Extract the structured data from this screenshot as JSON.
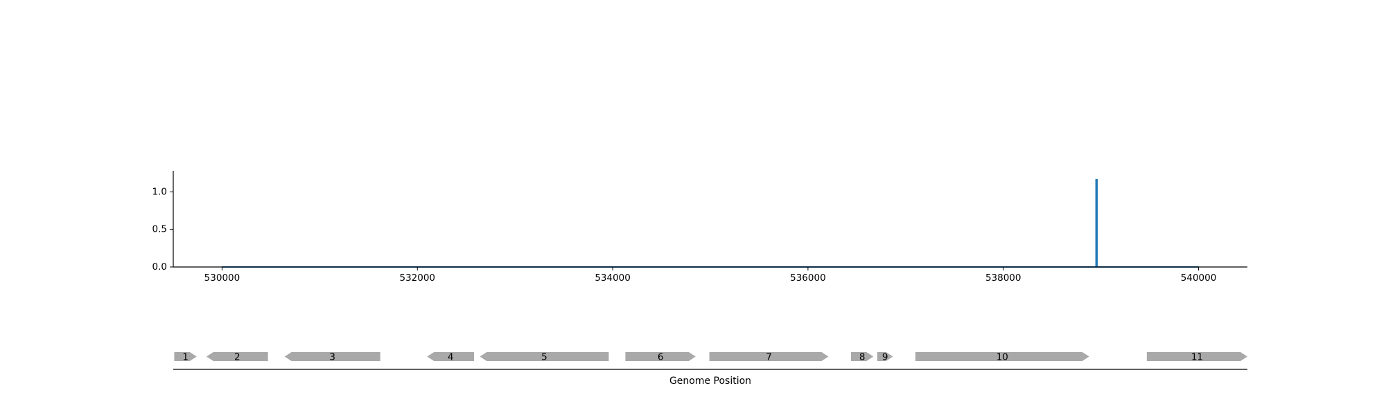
{
  "chart_data": [
    {
      "type": "line",
      "title": "",
      "xlabel": "",
      "ylabel": "",
      "xlim": [
        529500,
        540500
      ],
      "ylim": [
        0,
        1.28
      ],
      "x_ticks": [
        530000,
        532000,
        534000,
        536000,
        538000,
        540000
      ],
      "x_tick_labels": [
        "530000",
        "532000",
        "534000",
        "536000",
        "538000",
        "540000"
      ],
      "y_ticks": [
        0.0,
        0.5,
        1.0
      ],
      "y_tick_labels": [
        "0.0",
        "0.5",
        "1.0"
      ],
      "grid": false,
      "series": [
        {
          "color": "#1f77b4",
          "points": [
            [
              530000,
              0.0
            ],
            [
              538950,
              0.0
            ],
            [
              538950,
              1.16
            ],
            [
              538960,
              1.16
            ],
            [
              538960,
              0.0
            ],
            [
              540000,
              0.0
            ]
          ]
        }
      ]
    },
    {
      "type": "gene_map",
      "xlabel": "Genome Position",
      "xlim": [
        529500,
        540500
      ],
      "gene_color": "#a9a9a9",
      "genes": [
        {
          "label": "1",
          "start": 529510,
          "end": 529740,
          "strand": "+"
        },
        {
          "label": "2",
          "start": 529840,
          "end": 530470,
          "strand": "-"
        },
        {
          "label": "3",
          "start": 530640,
          "end": 531620,
          "strand": "-"
        },
        {
          "label": "4",
          "start": 532100,
          "end": 532580,
          "strand": "-"
        },
        {
          "label": "5",
          "start": 532640,
          "end": 533960,
          "strand": "-"
        },
        {
          "label": "6",
          "start": 534130,
          "end": 534850,
          "strand": "+"
        },
        {
          "label": "7",
          "start": 534990,
          "end": 536210,
          "strand": "+"
        },
        {
          "label": "8",
          "start": 536440,
          "end": 536670,
          "strand": "+"
        },
        {
          "label": "9",
          "start": 536710,
          "end": 536870,
          "strand": "+"
        },
        {
          "label": "10",
          "start": 537100,
          "end": 538880,
          "strand": "+"
        },
        {
          "label": "11",
          "start": 539470,
          "end": 540500,
          "strand": "+"
        }
      ]
    }
  ]
}
